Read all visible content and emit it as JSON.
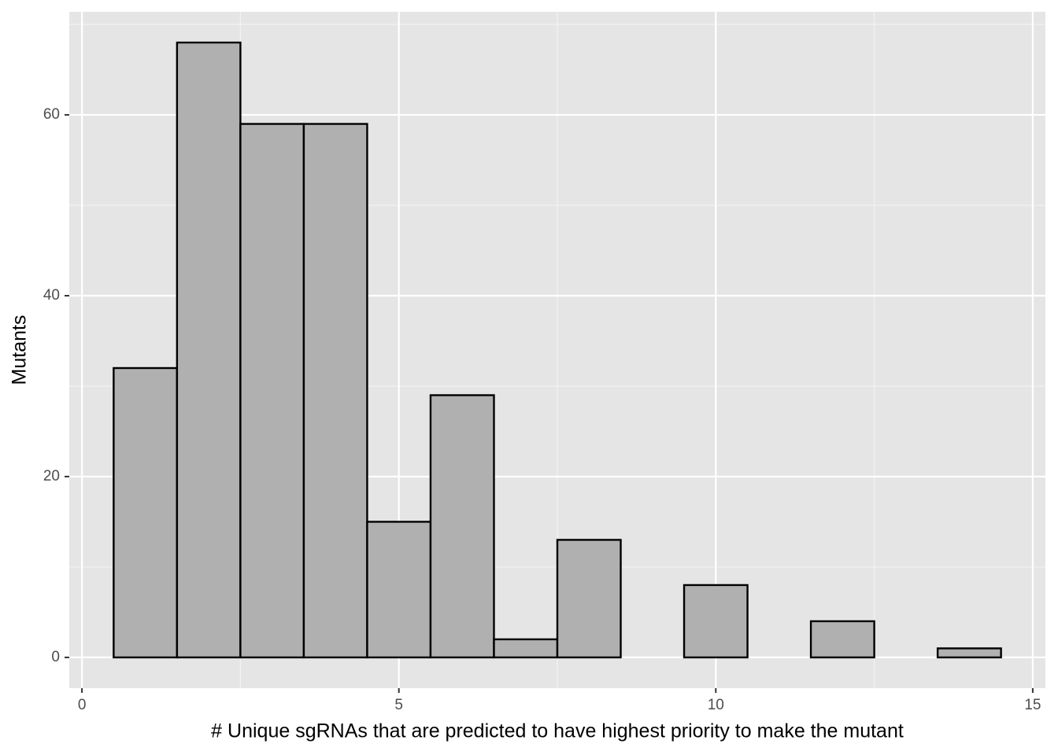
{
  "chart_data": {
    "type": "histogram",
    "x_label": "# Unique sgRNAs that are predicted to have highest priority to make the mutant",
    "y_label": "Mutants",
    "bins": [
      0.5,
      1.5,
      2.5,
      3.5,
      4.5,
      5.5,
      6.5,
      7.5,
      8.5,
      9.5,
      10.5,
      11.5,
      12.5,
      13.5,
      14.5
    ],
    "values": [
      32,
      68,
      59,
      59,
      15,
      29,
      2,
      13,
      0,
      8,
      0,
      4,
      0,
      1
    ],
    "color": "#b0b0b0",
    "edge_color": "#000000",
    "xlim": [
      -0.2,
      15.2
    ],
    "xticks": [
      0,
      5,
      10,
      15
    ],
    "ylim": [
      -3.4,
      71.4
    ],
    "yticks": [
      0,
      20,
      40,
      60
    ],
    "grid": true
  }
}
